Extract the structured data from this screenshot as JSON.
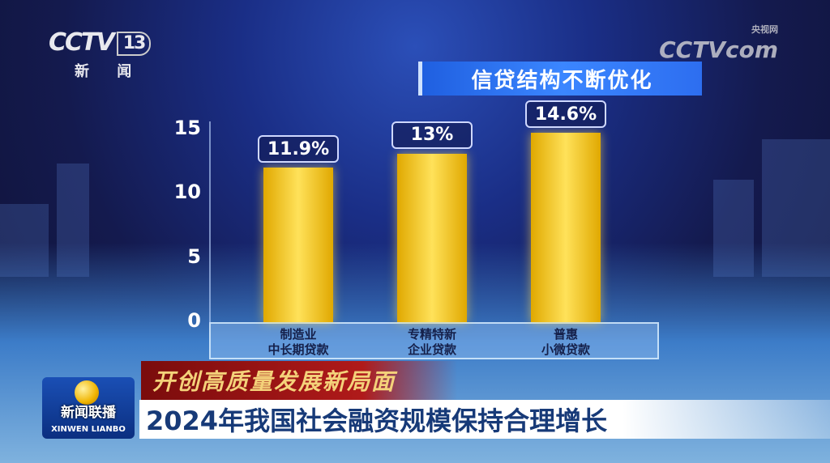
{
  "channel": {
    "logo": "CCTV",
    "number": "13",
    "name": "新 闻"
  },
  "watermark": {
    "logo": "CCTV",
    "domain": "com",
    "site": "央视网"
  },
  "chart_data": {
    "type": "bar",
    "title": "信贷结构不断优化",
    "categories": [
      [
        "制造业",
        "中长期贷款"
      ],
      [
        "专精特新",
        "企业贷款"
      ],
      [
        "普惠",
        "小微贷款"
      ]
    ],
    "values": [
      11.9,
      13,
      14.6
    ],
    "data_labels": [
      "11.9%",
      "13%",
      "14.6%"
    ],
    "yticks": [
      "0",
      "5",
      "10",
      "15"
    ],
    "ylim": [
      0,
      15
    ],
    "grid": false,
    "bar_color": "#f5c518"
  },
  "program": {
    "cn": "新闻联播",
    "en": "XINWEN LIANBO"
  },
  "slogan": "开创高质量发展新局面",
  "headline": "2024年我国社会融资规模保持合理增长"
}
